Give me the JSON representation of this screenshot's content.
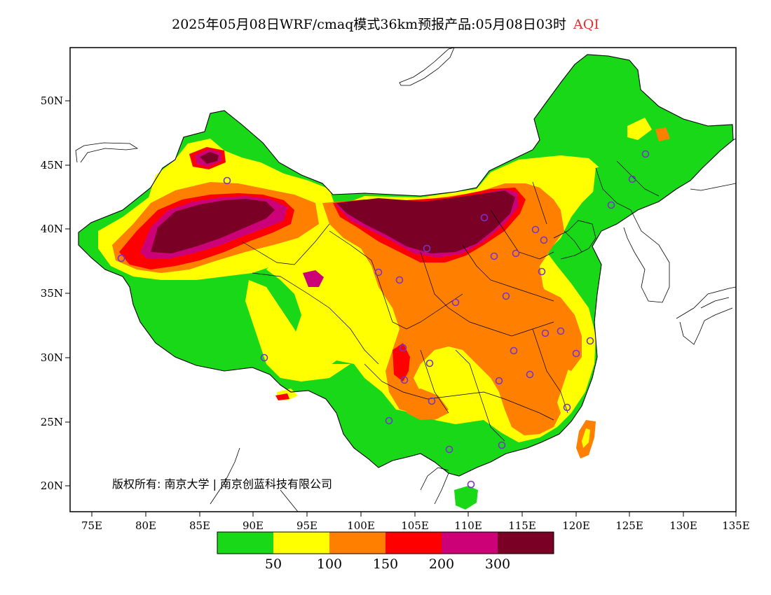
{
  "title": {
    "main": "2025年05月08日WRF/cmaq模式36km预报产品:05月08日03时",
    "variable": "AQI"
  },
  "map": {
    "lon_labels": [
      "75E",
      "80E",
      "85E",
      "90E",
      "95E",
      "100E",
      "105E",
      "110E",
      "115E",
      "120E",
      "125E",
      "130E",
      "135E"
    ],
    "lat_labels": [
      "50N",
      "45N",
      "40N",
      "35N",
      "30N",
      "25N",
      "20N"
    ],
    "copyright": "版权所有: 南京大学 | 南京创蓝科技有限公司"
  },
  "legend": {
    "colors": [
      "#18d818",
      "#ffff00",
      "#ff8000",
      "#ff0000",
      "#cc0077",
      "#7a0026"
    ],
    "labels": [
      "50",
      "100",
      "150",
      "200",
      "300"
    ]
  }
}
